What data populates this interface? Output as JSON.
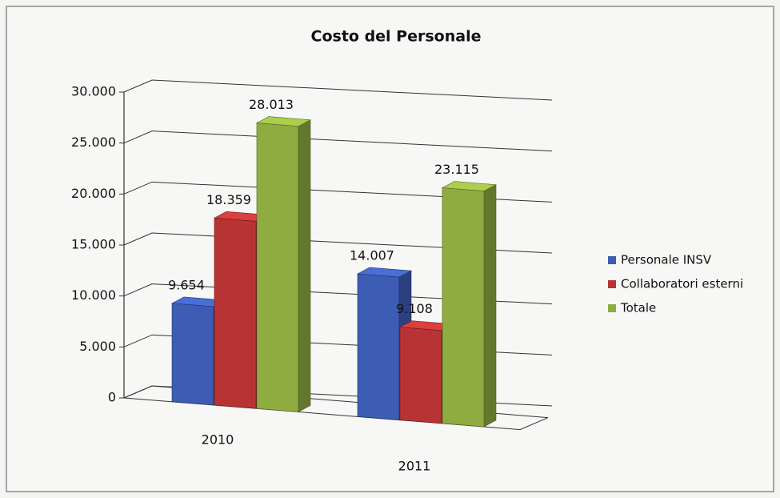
{
  "chart_data": {
    "type": "bar3d",
    "title": "Costo del Personale",
    "categories": [
      "2010",
      "2011"
    ],
    "series": [
      {
        "name": "Personale INSV",
        "color": "#3d5cb4",
        "values": [
          9654,
          14007
        ],
        "value_labels": [
          "9.654",
          "14.007"
        ]
      },
      {
        "name": "Collaboratori esterni",
        "color": "#b83434",
        "values": [
          18359,
          9108
        ],
        "value_labels": [
          "18.359",
          "9.108"
        ]
      },
      {
        "name": "Totale",
        "color": "#8fac40",
        "values": [
          28013,
          23115
        ],
        "value_labels": [
          "28.013",
          "23.115"
        ]
      }
    ],
    "ylim": [
      0,
      30000
    ],
    "yticks": [
      0,
      {
        "value": 5000,
        "label": "5.000"
      },
      {
        "value": 10000,
        "label": "10.000"
      },
      {
        "value": 15000,
        "label": "15.000"
      },
      {
        "value": 20000,
        "label": "20.000"
      },
      {
        "value": 25000,
        "label": "25.000"
      },
      {
        "value": 30000,
        "label": "30.000"
      }
    ],
    "grid": true,
    "legend": "right"
  }
}
